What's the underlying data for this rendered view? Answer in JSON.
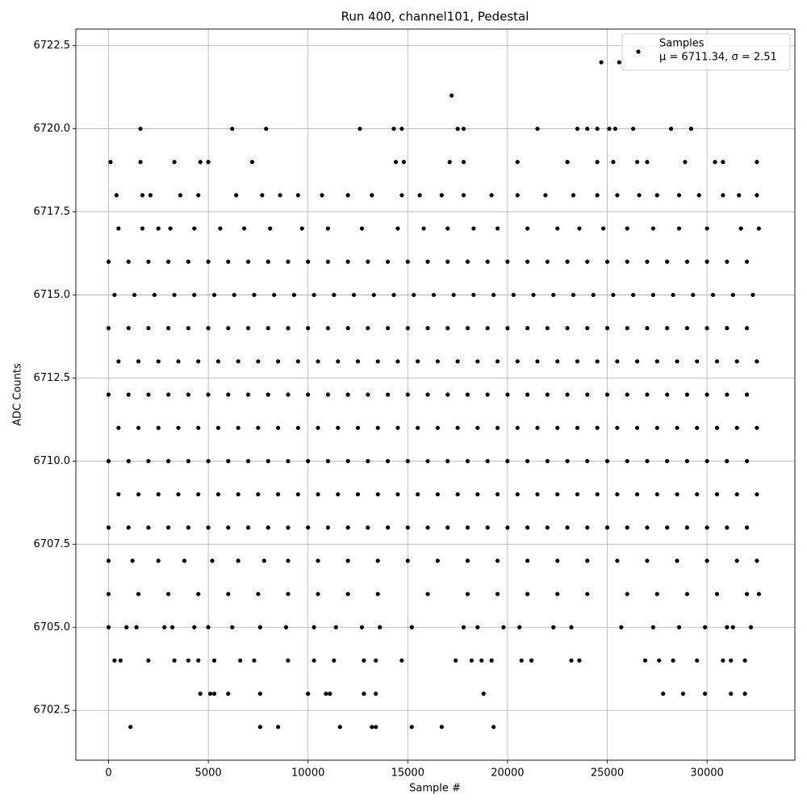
{
  "chart_data": {
    "type": "scatter",
    "title": "Run 400, channel101, Pedestal",
    "x_label": "Sample #",
    "y_label": "ADC Counts",
    "xlim": [
      -1638,
      34405
    ],
    "ylim": [
      6701,
      6723
    ],
    "xticks": [
      0,
      5000,
      10000,
      15000,
      20000,
      25000,
      30000
    ],
    "yticks": [
      6702.5,
      {
        "value": 6705,
        "label": "6705.0"
      },
      6707.5,
      {
        "value": 6710,
        "label": "6710.0"
      },
      6712.5,
      {
        "value": 6715,
        "label": "6715.0"
      },
      6717.5,
      {
        "value": 6720,
        "label": "6720.0"
      },
      6722.5
    ],
    "grid": true,
    "legend": "upper right",
    "legend_note": "μ = 6711.34, σ = 2.51",
    "series": [
      {
        "name": "Samples",
        "color": "#000000",
        "x": [
          0,
          1000,
          2000,
          3000,
          4000,
          5000,
          6000,
          7000,
          8000,
          9000,
          10000,
          11000,
          12000,
          13000,
          14000,
          15000,
          16000,
          17000,
          18000,
          19000,
          20000,
          21000,
          22000,
          23000,
          24000,
          25000,
          26000,
          27000,
          28000,
          29000,
          30000,
          31000,
          32000,
          500,
          1500,
          2500,
          3500,
          4500,
          5500,
          6500,
          7500,
          8500,
          9500,
          10500,
          11500,
          12500,
          13500,
          14500,
          15500,
          16500,
          17500,
          18500,
          19500,
          20500,
          21500,
          22500,
          23500,
          24500,
          25500,
          26500,
          27500,
          28500,
          29500,
          30500,
          31500,
          32500,
          0,
          1000,
          2000,
          3000,
          4000,
          5000,
          6000,
          7000,
          8000,
          9000,
          10000,
          11000,
          12000,
          13000,
          14000,
          15000,
          16000,
          17000,
          18000,
          19000,
          20000,
          21000,
          22000,
          23000,
          24000,
          25000,
          26000,
          27000,
          28000,
          29000,
          30000,
          31000,
          32000,
          500,
          1500,
          2500,
          3500,
          4500,
          5500,
          6500,
          7500,
          8500,
          9500,
          10500,
          11500,
          12500,
          13500,
          14500,
          15500,
          16500,
          17500,
          18500,
          19500,
          20500,
          21500,
          22500,
          23500,
          24500,
          25500,
          26500,
          27500,
          28500,
          29500,
          30500,
          31500,
          32500,
          0,
          1000,
          2000,
          3000,
          4000,
          5000,
          6000,
          7000,
          8000,
          9000,
          10000,
          11000,
          12000,
          13000,
          14000,
          15000,
          16000,
          17000,
          18000,
          19000,
          20000,
          21000,
          22000,
          23000,
          24000,
          25000,
          26000,
          27000,
          28000,
          29000,
          30000,
          31000,
          32000,
          500,
          1500,
          2500,
          3500,
          4500,
          5500,
          6500,
          7500,
          8500,
          9500,
          10500,
          11500,
          12500,
          13500,
          14500,
          15500,
          16500,
          17500,
          18500,
          19500,
          20500,
          21500,
          22500,
          23500,
          24500,
          25500,
          26500,
          27500,
          28500,
          29500,
          30500,
          31500,
          32500,
          0,
          1000,
          2000,
          3000,
          4000,
          5000,
          6000,
          7000,
          8000,
          9000,
          10000,
          11000,
          12000,
          13000,
          14000,
          15000,
          16000,
          17000,
          18000,
          19000,
          20000,
          21000,
          22000,
          23000,
          24000,
          25000,
          26000,
          27000,
          28000,
          29000,
          30000,
          31000,
          32000,
          300,
          1300,
          2300,
          3300,
          4300,
          5300,
          6300,
          7300,
          8300,
          9300,
          10300,
          11300,
          12300,
          13300,
          14300,
          15300,
          16300,
          17300,
          18300,
          19300,
          20300,
          21300,
          22300,
          23300,
          24300,
          25300,
          26300,
          27300,
          28300,
          29300,
          30300,
          31300,
          32300,
          0,
          1000,
          2000,
          3000,
          4000,
          5000,
          6000,
          7000,
          8000,
          9000,
          10000,
          11000,
          12000,
          13000,
          14000,
          15000,
          16000,
          17000,
          18000,
          19000,
          20000,
          21000,
          22000,
          23000,
          24000,
          25000,
          26000,
          27000,
          28000,
          29000,
          30000,
          31000,
          32000,
          0,
          1200,
          2500,
          3800,
          5200,
          6500,
          7800,
          9000,
          10500,
          12000,
          13500,
          15000,
          16500,
          18000,
          19500,
          21000,
          22500,
          24000,
          25500,
          27000,
          28500,
          30000,
          31500,
          32500,
          0,
          1500,
          3000,
          4500,
          6000,
          7500,
          9000,
          10500,
          12000,
          13500,
          16000,
          18000,
          19500,
          21000,
          22500,
          24000,
          26000,
          27500,
          29000,
          30500,
          32000,
          32600,
          0,
          900,
          1400,
          2800,
          3200,
          4300,
          5000,
          6200,
          7600,
          8900,
          10300,
          11400,
          12700,
          13600,
          15200,
          17800,
          18500,
          19800,
          20600,
          22300,
          23200,
          25700,
          27300,
          28600,
          29900,
          31000,
          31300,
          32200,
          500,
          1700,
          2500,
          3100,
          4300,
          5600,
          6800,
          8100,
          9700,
          11000,
          12700,
          14500,
          15800,
          17000,
          18300,
          19500,
          21000,
          22500,
          23600,
          24800,
          26000,
          27300,
          28600,
          30000,
          31700,
          32600,
          400,
          1700,
          2100,
          3600,
          4500,
          6400,
          7700,
          8600,
          9500,
          10700,
          12000,
          13200,
          14700,
          15600,
          16700,
          17800,
          19200,
          20500,
          21900,
          23300,
          24500,
          25500,
          26600,
          27500,
          28600,
          29600,
          30800,
          31600,
          32500,
          100,
          1600,
          3300,
          4600,
          5000,
          7200,
          14400,
          14800,
          17100,
          17800,
          20500,
          23000,
          24500,
          25300,
          26500,
          27000,
          28900,
          30400,
          30800,
          32500,
          1600,
          6200,
          7900,
          12600,
          14300,
          14700,
          17500,
          17800,
          21500,
          23500,
          24000,
          24500,
          25100,
          25400,
          26300,
          28200,
          29200,
          17200,
          24700,
          25600,
          300,
          600,
          2000,
          3300,
          4000,
          4500,
          5300,
          6600,
          7300,
          9000,
          10300,
          11300,
          12800,
          13400,
          14700,
          17400,
          18200,
          18700,
          19200,
          20700,
          21200,
          23200,
          23600,
          26900,
          27600,
          28300,
          29500,
          30800,
          31200,
          31900,
          4600,
          5100,
          5300,
          6000,
          7600,
          10000,
          10900,
          11100,
          12800,
          13400,
          18800,
          27800,
          28800,
          29900,
          31200,
          31900,
          1100,
          7600,
          8500,
          11600,
          13200,
          13400,
          15200,
          16700,
          19300
        ],
        "values": [
          6708,
          6708,
          6708,
          6708,
          6708,
          6708,
          6708,
          6708,
          6708,
          6708,
          6708,
          6708,
          6708,
          6708,
          6708,
          6708,
          6708,
          6708,
          6708,
          6708,
          6708,
          6708,
          6708,
          6708,
          6708,
          6708,
          6708,
          6708,
          6708,
          6708,
          6708,
          6708,
          6708,
          6709,
          6709,
          6709,
          6709,
          6709,
          6709,
          6709,
          6709,
          6709,
          6709,
          6709,
          6709,
          6709,
          6709,
          6709,
          6709,
          6709,
          6709,
          6709,
          6709,
          6709,
          6709,
          6709,
          6709,
          6709,
          6709,
          6709,
          6709,
          6709,
          6709,
          6709,
          6709,
          6709,
          6710,
          6710,
          6710,
          6710,
          6710,
          6710,
          6710,
          6710,
          6710,
          6710,
          6710,
          6710,
          6710,
          6710,
          6710,
          6710,
          6710,
          6710,
          6710,
          6710,
          6710,
          6710,
          6710,
          6710,
          6710,
          6710,
          6710,
          6710,
          6710,
          6710,
          6710,
          6710,
          6710,
          6711,
          6711,
          6711,
          6711,
          6711,
          6711,
          6711,
          6711,
          6711,
          6711,
          6711,
          6711,
          6711,
          6711,
          6711,
          6711,
          6711,
          6711,
          6711,
          6711,
          6711,
          6711,
          6711,
          6711,
          6711,
          6711,
          6711,
          6711,
          6711,
          6711,
          6711,
          6711,
          6711,
          6712,
          6712,
          6712,
          6712,
          6712,
          6712,
          6712,
          6712,
          6712,
          6712,
          6712,
          6712,
          6712,
          6712,
          6712,
          6712,
          6712,
          6712,
          6712,
          6712,
          6712,
          6712,
          6712,
          6712,
          6712,
          6712,
          6712,
          6712,
          6712,
          6712,
          6712,
          6712,
          6712,
          6713,
          6713,
          6713,
          6713,
          6713,
          6713,
          6713,
          6713,
          6713,
          6713,
          6713,
          6713,
          6713,
          6713,
          6713,
          6713,
          6713,
          6713,
          6713,
          6713,
          6713,
          6713,
          6713,
          6713,
          6713,
          6713,
          6713,
          6713,
          6713,
          6713,
          6713,
          6713,
          6713,
          6714,
          6714,
          6714,
          6714,
          6714,
          6714,
          6714,
          6714,
          6714,
          6714,
          6714,
          6714,
          6714,
          6714,
          6714,
          6714,
          6714,
          6714,
          6714,
          6714,
          6714,
          6714,
          6714,
          6714,
          6714,
          6714,
          6714,
          6714,
          6714,
          6714,
          6714,
          6714,
          6714,
          6715,
          6715,
          6715,
          6715,
          6715,
          6715,
          6715,
          6715,
          6715,
          6715,
          6715,
          6715,
          6715,
          6715,
          6715,
          6715,
          6715,
          6715,
          6715,
          6715,
          6715,
          6715,
          6715,
          6715,
          6715,
          6715,
          6715,
          6715,
          6715,
          6715,
          6715,
          6715,
          6715,
          6716,
          6716,
          6716,
          6716,
          6716,
          6716,
          6716,
          6716,
          6716,
          6716,
          6716,
          6716,
          6716,
          6716,
          6716,
          6716,
          6716,
          6716,
          6716,
          6716,
          6716,
          6716,
          6716,
          6716,
          6716,
          6716,
          6716,
          6716,
          6716,
          6716,
          6716,
          6716,
          6716,
          6707,
          6707,
          6707,
          6707,
          6707,
          6707,
          6707,
          6707,
          6707,
          6707,
          6707,
          6707,
          6707,
          6707,
          6707,
          6707,
          6707,
          6707,
          6707,
          6707,
          6707,
          6707,
          6707,
          6707,
          6706,
          6706,
          6706,
          6706,
          6706,
          6706,
          6706,
          6706,
          6706,
          6706,
          6706,
          6706,
          6706,
          6706,
          6706,
          6706,
          6706,
          6706,
          6706,
          6706,
          6706,
          6706,
          6705,
          6705,
          6705,
          6705,
          6705,
          6705,
          6705,
          6705,
          6705,
          6705,
          6705,
          6705,
          6705,
          6705,
          6705,
          6705,
          6705,
          6705,
          6705,
          6705,
          6705,
          6705,
          6705,
          6705,
          6705,
          6705,
          6705,
          6705,
          6717,
          6717,
          6717,
          6717,
          6717,
          6717,
          6717,
          6717,
          6717,
          6717,
          6717,
          6717,
          6717,
          6717,
          6717,
          6717,
          6717,
          6717,
          6717,
          6717,
          6717,
          6717,
          6717,
          6717,
          6717,
          6717,
          6718,
          6718,
          6718,
          6718,
          6718,
          6718,
          6718,
          6718,
          6718,
          6718,
          6718,
          6718,
          6718,
          6718,
          6718,
          6718,
          6718,
          6718,
          6718,
          6718,
          6718,
          6718,
          6718,
          6718,
          6718,
          6718,
          6718,
          6718,
          6718,
          6719,
          6719,
          6719,
          6719,
          6719,
          6719,
          6719,
          6719,
          6719,
          6719,
          6719,
          6719,
          6719,
          6719,
          6719,
          6719,
          6719,
          6719,
          6719,
          6719,
          6720,
          6720,
          6720,
          6720,
          6720,
          6720,
          6720,
          6720,
          6720,
          6720,
          6720,
          6720,
          6720,
          6720,
          6720,
          6720,
          6720,
          6721,
          6722,
          6722,
          6704,
          6704,
          6704,
          6704,
          6704,
          6704,
          6704,
          6704,
          6704,
          6704,
          6704,
          6704,
          6704,
          6704,
          6704,
          6704,
          6704,
          6704,
          6704,
          6704,
          6704,
          6704,
          6704,
          6704,
          6704,
          6704,
          6704,
          6704,
          6704,
          6704,
          6703,
          6703,
          6703,
          6703,
          6703,
          6703,
          6703,
          6703,
          6703,
          6703,
          6703,
          6703,
          6703,
          6703,
          6703,
          6703,
          6702,
          6702,
          6702,
          6702,
          6702,
          6702,
          6702,
          6702,
          6702
        ]
      }
    ]
  }
}
